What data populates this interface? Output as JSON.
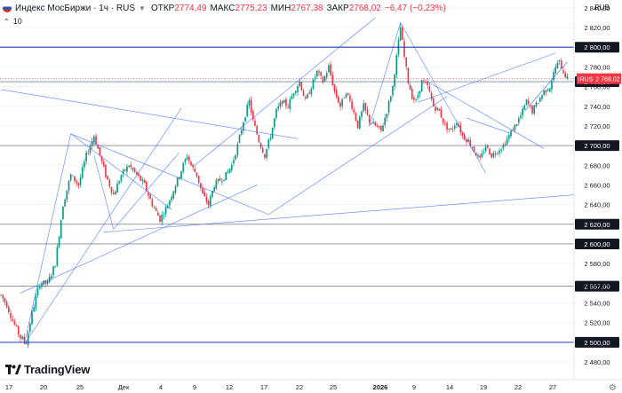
{
  "header": {
    "symbol": "Индекс МосБиржи · 1ч · RUS",
    "open_label": "ОТКР",
    "open": "2774,49",
    "high_label": "МАКС",
    "high": "2775,23",
    "low_label": "МИН",
    "low": "2767,38",
    "close_label": "ЗАКР",
    "close": "2768,02",
    "change": "−6,47 (−0,23%)"
  },
  "indicator_count": "10",
  "unit": "RUB",
  "brand": "TradingView",
  "colors": {
    "up": "#089981",
    "down": "#f23645",
    "line": "#2962ff",
    "price": "#f23645"
  },
  "chart_data": {
    "type": "candlestick",
    "symbol": "Индекс МосБиржи",
    "interval": "1ч",
    "ylim": [
      2462,
      2848
    ],
    "y_ticks": [
      "2 840,00",
      "2 820,00",
      "2 780,00",
      "2 760,00",
      "2 740,00",
      "2 720,00",
      "2 680,00",
      "2 660,00",
      "2 640,00",
      "2 580,00",
      "2 560,00",
      "2 540,00",
      "2 520,00",
      "2 480,00"
    ],
    "y_tick_values": [
      2840,
      2820,
      2780,
      2760,
      2740,
      2720,
      2680,
      2660,
      2640,
      2580,
      2560,
      2540,
      2520,
      2480
    ],
    "x_ticks": [
      "17",
      "20",
      "25",
      "Дек",
      "4",
      "9",
      "12",
      "17",
      "22",
      "25",
      "2026",
      "9",
      "14",
      "19",
      "22",
      "27"
    ],
    "horizontal_levels": [
      2800,
      2765,
      2700,
      2620,
      2600,
      2557,
      2500
    ],
    "horizontal_level_labels": [
      "2 800,00",
      "2 765,00",
      "2 700,00",
      "2 620,00",
      "2 600,00",
      "2 557,00",
      "2 500,00"
    ],
    "last_price": 2768.02,
    "last_price_label": "2 768,02",
    "last_price_tag": "IRUS",
    "price_path": [
      [
        0,
        2548
      ],
      [
        3,
        2538
      ],
      [
        6,
        2522
      ],
      [
        10,
        2505
      ],
      [
        13,
        2500
      ],
      [
        16,
        2530
      ],
      [
        20,
        2560
      ],
      [
        24,
        2560
      ],
      [
        28,
        2580
      ],
      [
        32,
        2640
      ],
      [
        36,
        2670
      ],
      [
        40,
        2660
      ],
      [
        44,
        2690
      ],
      [
        48,
        2710
      ],
      [
        51,
        2690
      ],
      [
        54,
        2670
      ],
      [
        58,
        2650
      ],
      [
        62,
        2670
      ],
      [
        66,
        2680
      ],
      [
        70,
        2670
      ],
      [
        74,
        2660
      ],
      [
        78,
        2640
      ],
      [
        82,
        2625
      ],
      [
        86,
        2640
      ],
      [
        90,
        2660
      ],
      [
        94,
        2680
      ],
      [
        96,
        2690
      ],
      [
        98,
        2680
      ],
      [
        101,
        2670
      ],
      [
        104,
        2650
      ],
      [
        107,
        2640
      ],
      [
        110,
        2660
      ],
      [
        113,
        2665
      ],
      [
        116,
        2670
      ],
      [
        119,
        2680
      ],
      [
        122,
        2700
      ],
      [
        125,
        2725
      ],
      [
        128,
        2745
      ],
      [
        130,
        2725
      ],
      [
        133,
        2705
      ],
      [
        136,
        2690
      ],
      [
        139,
        2710
      ],
      [
        142,
        2735
      ],
      [
        145,
        2745
      ],
      [
        148,
        2740
      ],
      [
        151,
        2755
      ],
      [
        154,
        2765
      ],
      [
        157,
        2745
      ],
      [
        160,
        2760
      ],
      [
        163,
        2775
      ],
      [
        166,
        2765
      ],
      [
        169,
        2780
      ],
      [
        172,
        2755
      ],
      [
        175,
        2740
      ],
      [
        178,
        2755
      ],
      [
        181,
        2740
      ],
      [
        184,
        2720
      ],
      [
        187,
        2740
      ],
      [
        190,
        2725
      ],
      [
        193,
        2720
      ],
      [
        196,
        2715
      ],
      [
        199,
        2735
      ],
      [
        202,
        2760
      ],
      [
        205,
        2805
      ],
      [
        206,
        2820
      ],
      [
        208,
        2790
      ],
      [
        210,
        2765
      ],
      [
        212,
        2750
      ],
      [
        214,
        2745
      ],
      [
        217,
        2765
      ],
      [
        220,
        2760
      ],
      [
        223,
        2740
      ],
      [
        226,
        2735
      ],
      [
        229,
        2720
      ],
      [
        232,
        2715
      ],
      [
        235,
        2725
      ],
      [
        238,
        2710
      ],
      [
        241,
        2705
      ],
      [
        244,
        2695
      ],
      [
        247,
        2685
      ],
      [
        250,
        2700
      ],
      [
        253,
        2690
      ],
      [
        256,
        2695
      ],
      [
        259,
        2700
      ],
      [
        262,
        2710
      ],
      [
        265,
        2720
      ],
      [
        268,
        2730
      ],
      [
        271,
        2745
      ],
      [
        274,
        2735
      ],
      [
        277,
        2745
      ],
      [
        280,
        2755
      ],
      [
        283,
        2760
      ],
      [
        286,
        2780
      ],
      [
        288,
        2785
      ],
      [
        290,
        2775
      ],
      [
        292,
        2768
      ]
    ]
  }
}
